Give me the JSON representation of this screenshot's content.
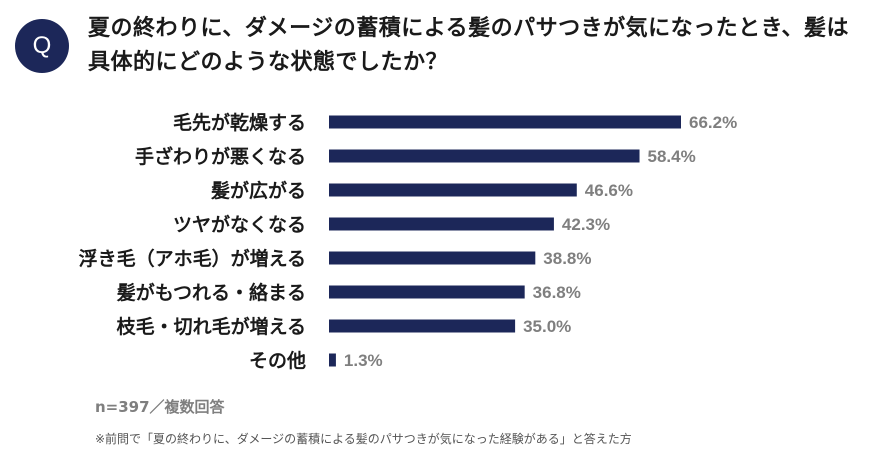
{
  "question": {
    "badge": "Q",
    "text": "夏の終わりに、ダメージの蓄積による髪のパサつきが気になったとき、髪は具体的にどのような状態でしたか？"
  },
  "chart_data": {
    "type": "bar",
    "orientation": "horizontal",
    "categories": [
      "毛先が乾燥する",
      "手ざわりが悪くなる",
      "髪が広がる",
      "ツヤがなくなる",
      "浮き毛（アホ毛）が増える",
      "髪がもつれる・絡まる",
      "枝毛・切れ毛が増える",
      "その他"
    ],
    "values": [
      66.2,
      58.4,
      46.6,
      42.3,
      38.8,
      36.8,
      35.0,
      1.3
    ],
    "value_labels": [
      "66.2%",
      "58.4%",
      "46.6%",
      "42.3%",
      "38.8%",
      "36.8%",
      "35.0%",
      "1.3%"
    ],
    "unit": "%",
    "bar_color": "#1c2759"
  },
  "notes": {
    "sample": "n=397／複数回答",
    "footnote": "※前問で「夏の終わりに、ダメージの蓄積による髪のパサつきが気になった経験がある」と答えた方"
  },
  "colors": {
    "accent": "#1c2759",
    "value_text": "#7f7f7f"
  }
}
